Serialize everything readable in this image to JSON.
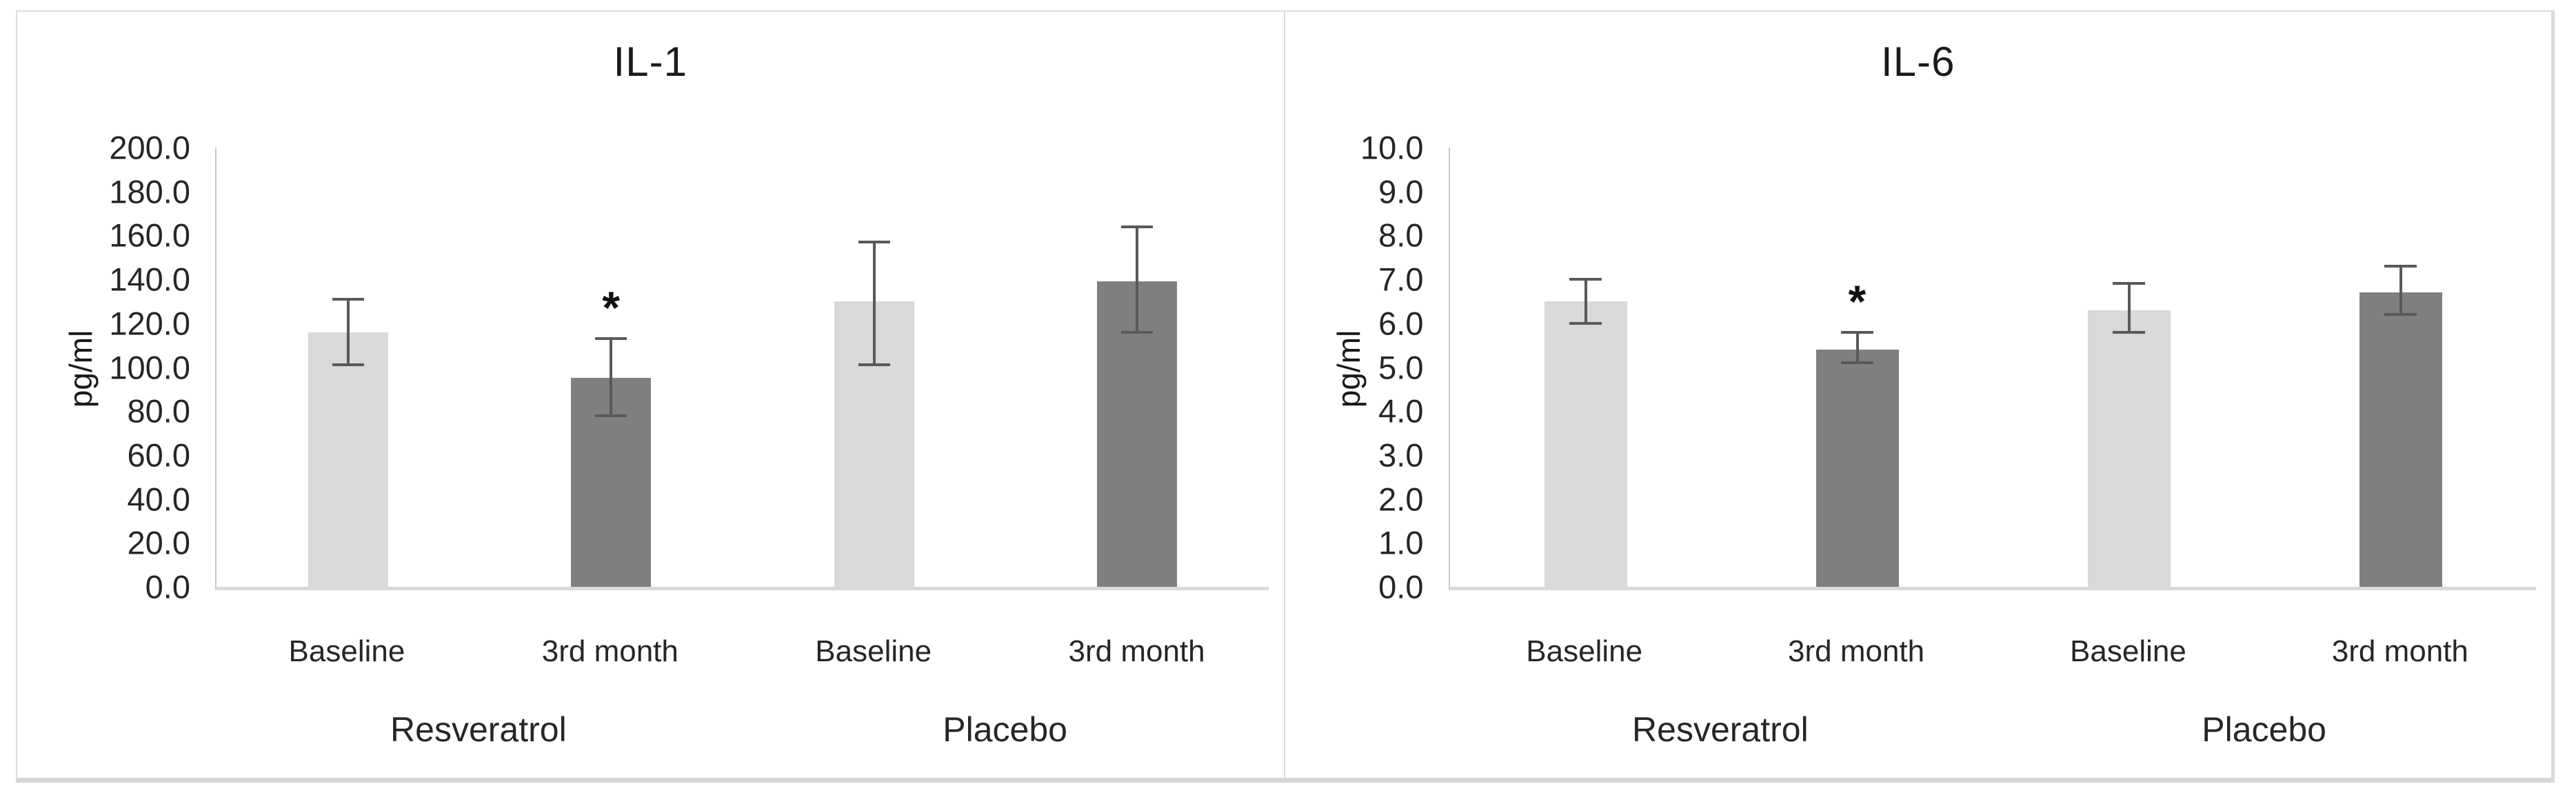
{
  "figure": {
    "background": "#ffffff",
    "panel_border_color": "#dcdcdc"
  },
  "colors": {
    "bar_light": "#d9d9d9",
    "bar_dark": "#7f7f7f",
    "error_bar": "#595959",
    "axis_line": "#c9c9c9",
    "baseline_line": "#d9d9d9",
    "text": "#262626"
  },
  "chart_data": [
    {
      "type": "bar",
      "title": "IL-1",
      "ylabel": "pg/ml",
      "ylim": [
        0,
        200
      ],
      "ytick_step": 20,
      "ytick_labels": [
        "0.0",
        "20.0",
        "40.0",
        "60.0",
        "80.0",
        "100.0",
        "120.0",
        "140.0",
        "160.0",
        "180.0",
        "200.0"
      ],
      "grid": false,
      "legend": null,
      "categories": [
        "Baseline",
        "3rd month",
        "Baseline",
        "3rd month"
      ],
      "group_labels": [
        "Resveratrol",
        "Placebo"
      ],
      "values": [
        116,
        95,
        130,
        139
      ],
      "error_low": [
        101,
        78,
        101,
        116
      ],
      "error_high": [
        131,
        113,
        157,
        164
      ],
      "bar_color_keys": [
        "bar_light",
        "bar_dark",
        "bar_light",
        "bar_dark"
      ],
      "annotations": [
        {
          "bar_index": 1,
          "text": "*"
        }
      ]
    },
    {
      "type": "bar",
      "title": "IL-6",
      "ylabel": "pg/ml",
      "ylim": [
        0,
        10
      ],
      "ytick_step": 1,
      "ytick_labels": [
        "0.0",
        "1.0",
        "2.0",
        "3.0",
        "4.0",
        "5.0",
        "6.0",
        "7.0",
        "8.0",
        "9.0",
        "10.0"
      ],
      "grid": false,
      "legend": null,
      "categories": [
        "Baseline",
        "3rd month",
        "Baseline",
        "3rd month"
      ],
      "group_labels": [
        "Resveratrol",
        "Placebo"
      ],
      "values": [
        6.5,
        5.4,
        6.3,
        6.7
      ],
      "error_low": [
        6.0,
        5.1,
        5.8,
        6.2
      ],
      "error_high": [
        7.0,
        5.8,
        6.9,
        7.3
      ],
      "bar_color_keys": [
        "bar_light",
        "bar_dark",
        "bar_light",
        "bar_dark"
      ],
      "annotations": [
        {
          "bar_index": 1,
          "text": "*"
        }
      ]
    }
  ]
}
